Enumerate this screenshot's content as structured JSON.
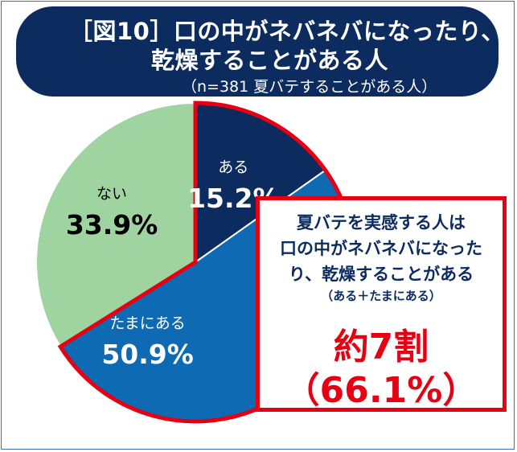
{
  "header": {
    "title_line1": "［図10］口の中がネバネバになったり、",
    "title_line2": "乾燥することがある人",
    "subtitle": "（n=381 夏バテすることがある人）"
  },
  "chart_data": {
    "type": "pie",
    "title": "［図10］口の中がネバネバになったり、乾燥することがある人",
    "subtitle": "（n=381 夏バテすることがある人）",
    "slices": [
      {
        "label": "ある",
        "value": 15.2,
        "value_label": "15.2%",
        "color": "#0c2b5e",
        "text_color": "#ffffff"
      },
      {
        "label": "たまにある",
        "value": 50.9,
        "value_label": "50.9%",
        "color": "#0e6ab2",
        "text_color": "#ffffff"
      },
      {
        "label": "ない",
        "value": 33.9,
        "value_label": "33.9%",
        "color": "#9fd3a0",
        "text_color": "#000000"
      }
    ],
    "highlight_color": "#e60012"
  },
  "callout": {
    "line1": "夏バテを実感する人は",
    "line2": "口の中がネバネバになった",
    "line3": "り、乾燥することがある",
    "line4": "（ある＋たまにある）",
    "big1": "約7割",
    "big2": "（66.1%）"
  }
}
